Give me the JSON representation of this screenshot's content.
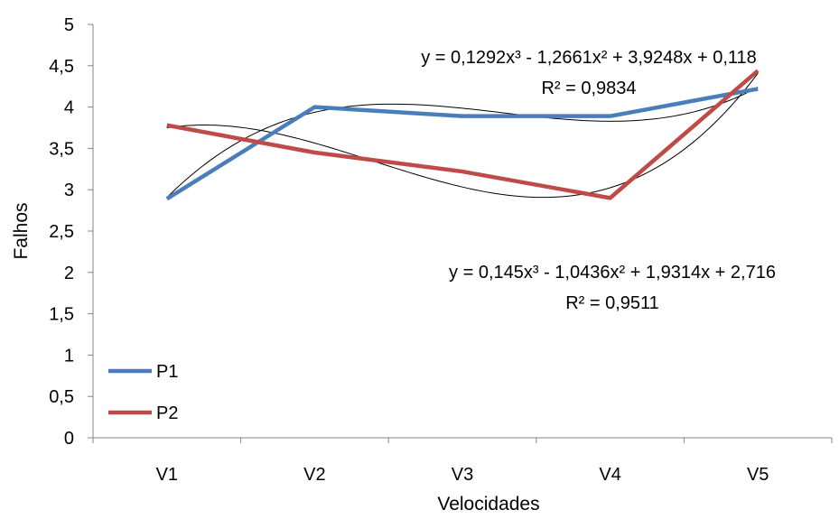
{
  "chart_data": {
    "type": "line",
    "xlabel": "Velocidades",
    "ylabel": "Falhos",
    "categories": [
      "V1",
      "V2",
      "V3",
      "V4",
      "V5"
    ],
    "ylim": [
      0,
      5
    ],
    "yticks": [
      "0",
      "0,5",
      "1",
      "1,5",
      "2",
      "2,5",
      "3",
      "3,5",
      "4",
      "4,5",
      "5"
    ],
    "grid": false,
    "legend_position": "bottom-left",
    "series": [
      {
        "name": "P1",
        "color": "#4A7EBB",
        "values": [
          2.89,
          4.0,
          3.89,
          3.89,
          4.22
        ]
      },
      {
        "name": "P2",
        "color": "#BE4B48",
        "values": [
          3.78,
          3.45,
          3.22,
          2.9,
          4.44
        ]
      }
    ],
    "trendlines": [
      {
        "type": "polynomial-3",
        "color": "#000000",
        "coef": [
          0.1292,
          -1.2661,
          3.9248,
          0.118
        ],
        "equation": "y = 0,1292x³ - 1,2661x² + 3,9248x + 0,118",
        "r2": "R² = 0,9834"
      },
      {
        "type": "polynomial-3",
        "color": "#000000",
        "coef": [
          0.145,
          -1.0436,
          1.9314,
          2.716
        ],
        "equation": "y = 0,145x³ - 1,0436x² + 1,9314x + 2,716",
        "r2": "R² = 0,9511"
      }
    ]
  }
}
